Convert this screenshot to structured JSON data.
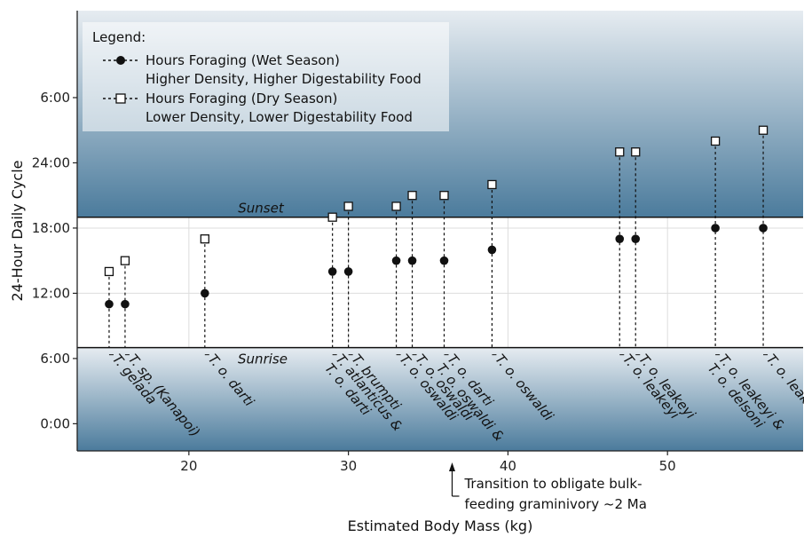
{
  "chart_data": {
    "type": "scatter",
    "xlabel": "Estimated Body Mass (kg)",
    "ylabel": "24-Hour Daily Cycle",
    "xlim": [
      13,
      58.5
    ],
    "ylim": [
      -2.5,
      38
    ],
    "x_ticks": [
      20,
      30,
      40,
      50
    ],
    "y_ticks": [
      {
        "value": 0,
        "label": "0:00"
      },
      {
        "value": 6,
        "label": "6:00"
      },
      {
        "value": 12,
        "label": "12:00"
      },
      {
        "value": 18,
        "label": "18:00"
      },
      {
        "value": 24,
        "label": "24:00"
      },
      {
        "value": 30,
        "label": "6:00"
      }
    ],
    "sunrise": {
      "value": 7,
      "label": "Sunrise"
    },
    "sunset": {
      "value": 19,
      "label": "Sunset"
    },
    "legend": {
      "title": "Legend:",
      "position": "top-left",
      "entries": [
        {
          "line1": "Hours Foraging (Wet Season)",
          "line2": "Higher Density, Higher Digestability Food",
          "marker": "filled-circle"
        },
        {
          "line1": "Hours Foraging (Dry Season)",
          "line2": "Lower Density, Lower Digestability Food",
          "marker": "open-square"
        }
      ]
    },
    "points": [
      {
        "x": 15,
        "wet": 11,
        "dry": 14,
        "label": "T. gelada"
      },
      {
        "x": 16,
        "wet": 11,
        "dry": 15,
        "label": "T. sp. (Kanapoi)"
      },
      {
        "x": 21,
        "wet": 12,
        "dry": 17,
        "label": "T. o. darti"
      },
      {
        "x": 29,
        "wet": 14,
        "dry": 19,
        "label": "T. atlanticus &\nT. o. darti"
      },
      {
        "x": 30,
        "wet": 14,
        "dry": 20,
        "label": "T. brumpti"
      },
      {
        "x": 33,
        "wet": 15,
        "dry": 20,
        "label": "T. o. oswaldi"
      },
      {
        "x": 34,
        "wet": 15,
        "dry": 21,
        "label": "T. o. oswaldi"
      },
      {
        "x": 36,
        "wet": 15,
        "dry": 21,
        "label": "T. o. darti\nT. o. oswaldi &"
      },
      {
        "x": 39,
        "wet": 16,
        "dry": 22,
        "label": "T. o. oswaldi"
      },
      {
        "x": 47,
        "wet": 17,
        "dry": 25,
        "label": "T. o. leakeyi"
      },
      {
        "x": 48,
        "wet": 17,
        "dry": 25,
        "label": "T. o. leakeyi"
      },
      {
        "x": 53,
        "wet": 18,
        "dry": 26,
        "label": "T. o. leakeyi &\nT. o. delsoni"
      },
      {
        "x": 56,
        "wet": 18,
        "dry": 27,
        "label": "T. o. leakeyi"
      }
    ],
    "annotation": {
      "x": 36.5,
      "lines": [
        "Transition to obligate bulk-",
        "feeding graminivory ~2 Ma"
      ]
    },
    "colors": {
      "band_light": "#e6ecf1",
      "band_dark": "#4b7b9c",
      "grid": "#dddddd",
      "marker": "#111111"
    }
  }
}
